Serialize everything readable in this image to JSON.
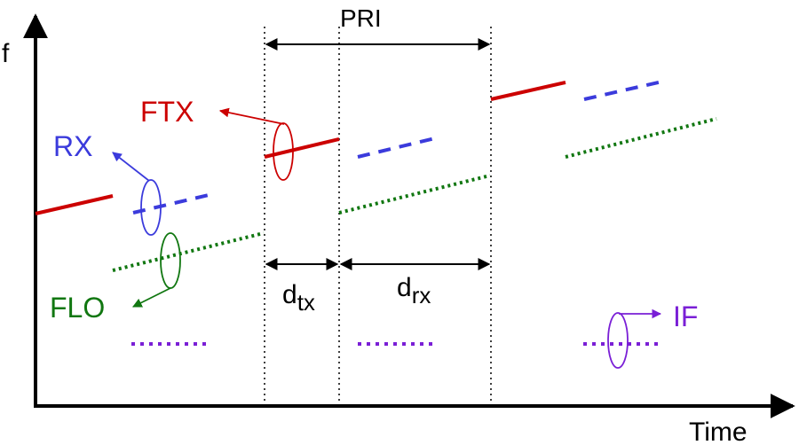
{
  "axes": {
    "y_label": "f",
    "x_label": "Time"
  },
  "annotations": {
    "pri": "PRI",
    "d_tx_main": "d",
    "d_tx_sub": "tx",
    "d_rx_main": "d",
    "d_rx_sub": "rx"
  },
  "signals": {
    "ftx": {
      "label": "FTX",
      "color": "#cc0000"
    },
    "rx": {
      "label": "RX",
      "color": "#3b3bdc"
    },
    "flo": {
      "label": "FLO",
      "color": "#117711"
    },
    "if": {
      "label": "IF",
      "color": "#7a1fd6"
    }
  },
  "colors": {
    "axis": "#000000",
    "guide": "#000000"
  }
}
